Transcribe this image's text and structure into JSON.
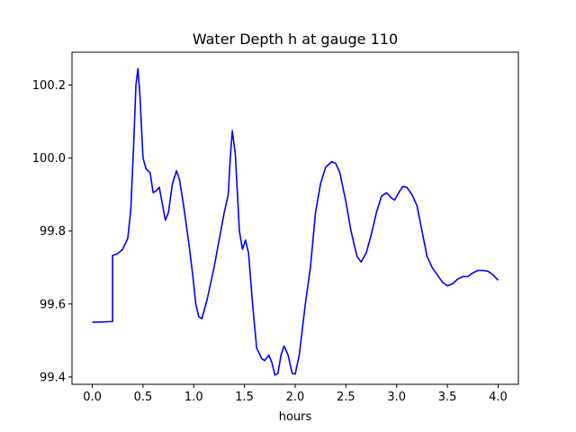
{
  "chart_data": {
    "type": "line",
    "title": "Water Depth h at gauge 110",
    "xlabel": "hours",
    "ylabel": "",
    "xlim": [
      -0.2,
      4.2
    ],
    "ylim": [
      99.38,
      100.29
    ],
    "xticks": [
      0.0,
      0.5,
      1.0,
      1.5,
      2.0,
      2.5,
      3.0,
      3.5,
      4.0
    ],
    "xtick_labels": [
      "0.0",
      "0.5",
      "1.0",
      "1.5",
      "2.0",
      "2.5",
      "3.0",
      "3.5",
      "4.0"
    ],
    "yticks": [
      99.4,
      99.6,
      99.8,
      100.0,
      100.2
    ],
    "ytick_labels": [
      "99.4",
      "99.6",
      "99.8",
      "100.0",
      "100.2"
    ],
    "grid": false,
    "series": [
      {
        "color": "#0000ff",
        "points": [
          [
            0.0,
            99.55
          ],
          [
            0.1,
            99.551
          ],
          [
            0.2,
            99.552
          ],
          [
            0.2,
            99.733
          ],
          [
            0.25,
            99.738
          ],
          [
            0.3,
            99.75
          ],
          [
            0.35,
            99.78
          ],
          [
            0.38,
            99.86
          ],
          [
            0.41,
            100.05
          ],
          [
            0.43,
            100.2
          ],
          [
            0.45,
            100.245
          ],
          [
            0.47,
            100.17
          ],
          [
            0.5,
            100.0
          ],
          [
            0.53,
            99.97
          ],
          [
            0.57,
            99.96
          ],
          [
            0.6,
            99.905
          ],
          [
            0.63,
            99.91
          ],
          [
            0.66,
            99.92
          ],
          [
            0.7,
            99.86
          ],
          [
            0.72,
            99.83
          ],
          [
            0.75,
            99.85
          ],
          [
            0.79,
            99.93
          ],
          [
            0.83,
            99.965
          ],
          [
            0.86,
            99.94
          ],
          [
            0.9,
            99.87
          ],
          [
            0.95,
            99.77
          ],
          [
            0.99,
            99.68
          ],
          [
            1.02,
            99.6
          ],
          [
            1.05,
            99.565
          ],
          [
            1.08,
            99.56
          ],
          [
            1.13,
            99.61
          ],
          [
            1.2,
            99.7
          ],
          [
            1.26,
            99.79
          ],
          [
            1.3,
            99.85
          ],
          [
            1.34,
            99.9
          ],
          [
            1.36,
            100.0
          ],
          [
            1.38,
            100.075
          ],
          [
            1.41,
            100.01
          ],
          [
            1.45,
            99.8
          ],
          [
            1.48,
            99.75
          ],
          [
            1.51,
            99.775
          ],
          [
            1.54,
            99.74
          ],
          [
            1.58,
            99.6
          ],
          [
            1.62,
            99.48
          ],
          [
            1.67,
            99.45
          ],
          [
            1.7,
            99.445
          ],
          [
            1.74,
            99.46
          ],
          [
            1.77,
            99.44
          ],
          [
            1.8,
            99.405
          ],
          [
            1.83,
            99.41
          ],
          [
            1.86,
            99.46
          ],
          [
            1.89,
            99.485
          ],
          [
            1.93,
            99.46
          ],
          [
            1.97,
            99.41
          ],
          [
            2.0,
            99.408
          ],
          [
            2.04,
            99.46
          ],
          [
            2.1,
            99.6
          ],
          [
            2.15,
            99.7
          ],
          [
            2.2,
            99.85
          ],
          [
            2.25,
            99.93
          ],
          [
            2.3,
            99.975
          ],
          [
            2.36,
            99.99
          ],
          [
            2.4,
            99.985
          ],
          [
            2.44,
            99.96
          ],
          [
            2.5,
            99.88
          ],
          [
            2.55,
            99.8
          ],
          [
            2.61,
            99.73
          ],
          [
            2.65,
            99.715
          ],
          [
            2.7,
            99.74
          ],
          [
            2.75,
            99.79
          ],
          [
            2.8,
            99.85
          ],
          [
            2.85,
            99.895
          ],
          [
            2.9,
            99.905
          ],
          [
            2.95,
            99.89
          ],
          [
            2.98,
            99.885
          ],
          [
            3.02,
            99.905
          ],
          [
            3.06,
            99.922
          ],
          [
            3.1,
            99.92
          ],
          [
            3.15,
            99.9
          ],
          [
            3.2,
            99.87
          ],
          [
            3.25,
            99.8
          ],
          [
            3.3,
            99.73
          ],
          [
            3.35,
            99.7
          ],
          [
            3.4,
            99.68
          ],
          [
            3.45,
            99.66
          ],
          [
            3.5,
            99.65
          ],
          [
            3.55,
            99.655
          ],
          [
            3.6,
            99.668
          ],
          [
            3.65,
            99.675
          ],
          [
            3.7,
            99.675
          ],
          [
            3.75,
            99.685
          ],
          [
            3.8,
            99.692
          ],
          [
            3.85,
            99.692
          ],
          [
            3.9,
            99.69
          ],
          [
            3.95,
            99.68
          ],
          [
            4.0,
            99.665
          ]
        ]
      }
    ]
  }
}
